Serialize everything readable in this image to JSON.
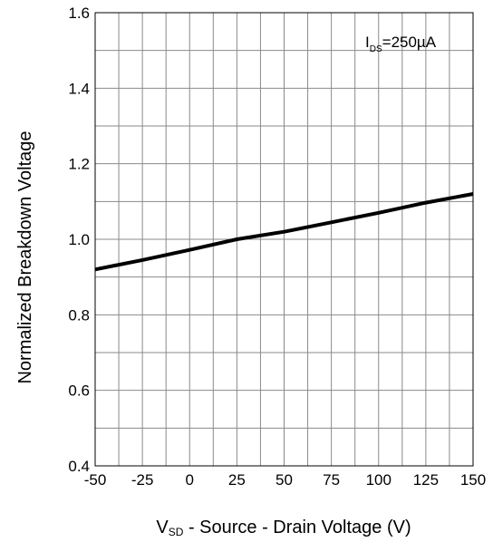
{
  "chart_data": {
    "type": "line",
    "title": "",
    "xlabel": {
      "main_prefix": "V",
      "main_sub": "SD",
      "rest": " - Source - Drain Voltage (V)"
    },
    "ylabel": "Normalized Breakdown Voltage",
    "xlim": [
      -50,
      150
    ],
    "ylim": [
      0.4,
      1.6
    ],
    "x_ticks": [
      -50,
      -25,
      0,
      25,
      50,
      75,
      100,
      125,
      150
    ],
    "x_tick_labels": [
      "-50",
      "-25",
      "0",
      "25",
      "50",
      "75",
      "100",
      "125",
      "150"
    ],
    "y_ticks": [
      0.4,
      0.6,
      0.8,
      1.0,
      1.2,
      1.4,
      1.6
    ],
    "y_tick_labels": [
      "0.4",
      "0.6",
      "0.8",
      "1.0",
      "1.2",
      "1.4",
      "1.6"
    ],
    "grid": true,
    "annotation": {
      "prefix": "I",
      "sub": "DS",
      "rest": "=250µA"
    },
    "series": [
      {
        "color": "#000000",
        "x": [
          -50,
          -25,
          0,
          25,
          50,
          75,
          100,
          125,
          150
        ],
        "y": [
          0.92,
          0.945,
          0.972,
          1.0,
          1.02,
          1.045,
          1.07,
          1.097,
          1.12
        ]
      }
    ]
  }
}
